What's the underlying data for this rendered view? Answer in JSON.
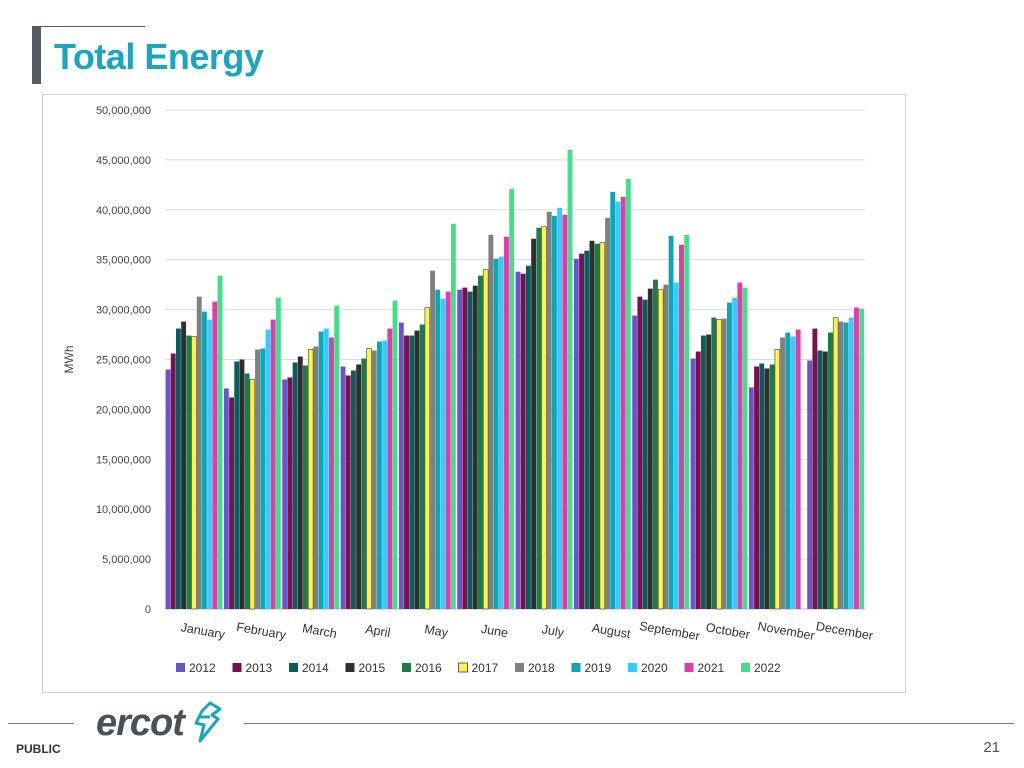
{
  "slide": {
    "title": "Total Energy",
    "footer_label": "PUBLIC",
    "page_number": "21",
    "logo_text": "ercot"
  },
  "colors": {
    "title": "#1aa6bf",
    "accent_bar": "#555b60"
  },
  "chart_data": {
    "type": "bar",
    "title": "",
    "xlabel": "",
    "ylabel": "MWh",
    "ylim": [
      0,
      50000000
    ],
    "yticks": [
      0,
      5000000,
      10000000,
      15000000,
      20000000,
      25000000,
      30000000,
      35000000,
      40000000,
      45000000,
      50000000
    ],
    "ytick_labels": [
      "0",
      "5,000,000",
      "10,000,000",
      "15,000,000",
      "20,000,000",
      "25,000,000",
      "30,000,000",
      "35,000,000",
      "40,000,000",
      "45,000,000",
      "50,000,000"
    ],
    "grid": true,
    "legend": "bottom",
    "categories": [
      "January",
      "February",
      "March",
      "April",
      "May",
      "June",
      "July",
      "August",
      "September",
      "October",
      "November",
      "December"
    ],
    "series": [
      {
        "name": "2012",
        "color": "#6a55c8",
        "values": [
          24000000,
          22100000,
          23000000,
          24300000,
          28700000,
          32000000,
          33800000,
          35100000,
          29400000,
          25100000,
          22200000,
          24900000
        ]
      },
      {
        "name": "2013",
        "color": "#7a1050",
        "values": [
          25600000,
          21200000,
          23200000,
          23400000,
          27400000,
          32200000,
          33600000,
          35600000,
          31300000,
          25800000,
          24300000,
          28100000
        ]
      },
      {
        "name": "2014",
        "color": "#0b5c5a",
        "values": [
          28100000,
          24800000,
          24700000,
          23900000,
          27400000,
          31800000,
          34400000,
          35900000,
          31000000,
          27400000,
          24600000,
          25900000
        ]
      },
      {
        "name": "2015",
        "color": "#2f2f2f",
        "values": [
          28800000,
          25000000,
          25300000,
          24500000,
          27900000,
          32400000,
          37100000,
          36900000,
          32100000,
          27500000,
          24100000,
          25800000
        ]
      },
      {
        "name": "2016",
        "color": "#1d7a4a",
        "values": [
          27400000,
          23600000,
          24400000,
          25100000,
          28500000,
          33400000,
          38200000,
          36600000,
          33000000,
          29200000,
          24500000,
          27700000
        ]
      },
      {
        "name": "2017",
        "color": "#fff34a",
        "values": [
          27300000,
          23000000,
          26000000,
          26100000,
          30200000,
          34000000,
          38300000,
          36700000,
          32000000,
          29000000,
          26000000,
          29200000
        ]
      },
      {
        "name": "2018",
        "color": "#808080",
        "values": [
          31300000,
          26000000,
          26300000,
          25900000,
          33900000,
          37500000,
          39800000,
          39200000,
          32500000,
          29100000,
          27200000,
          28800000
        ]
      },
      {
        "name": "2019",
        "color": "#10a5b5",
        "values": [
          29800000,
          26100000,
          27800000,
          26800000,
          32000000,
          35100000,
          39400000,
          41800000,
          37400000,
          30700000,
          27700000,
          28700000
        ]
      },
      {
        "name": "2020",
        "color": "#33ccff",
        "values": [
          29000000,
          28000000,
          28100000,
          26900000,
          31100000,
          35300000,
          40200000,
          40800000,
          32700000,
          31200000,
          27300000,
          29200000
        ]
      },
      {
        "name": "2021",
        "color": "#e03ca8",
        "values": [
          30800000,
          29000000,
          27200000,
          28100000,
          31800000,
          37300000,
          39500000,
          41300000,
          36500000,
          32700000,
          28000000,
          30200000
        ]
      },
      {
        "name": "2022",
        "color": "#44dd8a",
        "values": [
          33400000,
          31200000,
          30400000,
          30900000,
          38600000,
          42100000,
          46000000,
          43100000,
          37500000,
          32200000,
          0,
          30100000
        ]
      }
    ]
  }
}
